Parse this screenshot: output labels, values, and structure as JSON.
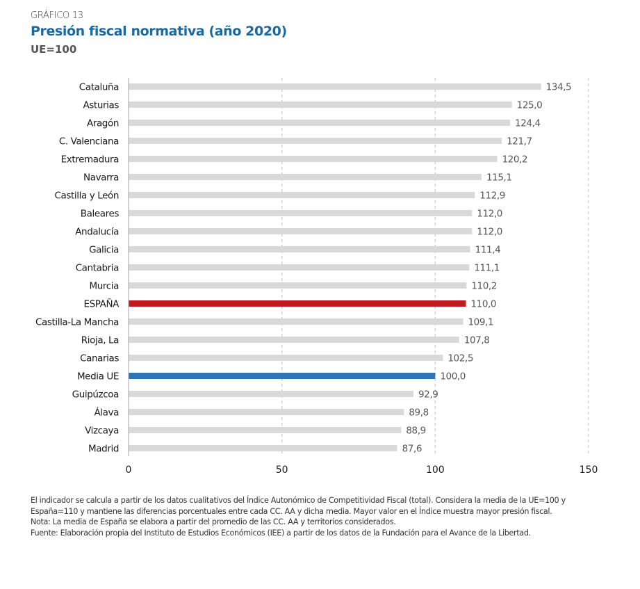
{
  "header": {
    "kicker": "GRÁFICO 13",
    "title": "Presión fiscal normativa (año 2020)",
    "subtitle": "UE=100"
  },
  "colors": {
    "default_bar": "#d9d9d9",
    "spain_bar": "#c0191f",
    "eu_bar": "#2e75b6",
    "title": "#1a6aa0"
  },
  "chart_data": {
    "type": "bar",
    "orientation": "horizontal",
    "title": "Presión fiscal normativa (año 2020)",
    "subtitle": "UE=100",
    "xlabel": "",
    "ylabel": "",
    "xlim": [
      0,
      150
    ],
    "xticks": [
      0,
      50,
      100,
      150
    ],
    "xtick_labels": [
      "0",
      "50",
      "100",
      "150"
    ],
    "grid": "vertical dashed at 50, 100, 150",
    "legend": "none",
    "categories": [
      "Cataluña",
      "Asturias",
      "Aragón",
      "C. Valenciana",
      "Extremadura",
      "Navarra",
      "Castilla y León",
      "Baleares",
      "Andalucía",
      "Galicia",
      "Cantabria",
      "Murcia",
      "ESPAÑA",
      "Castilla-La Mancha",
      "Rioja, La",
      "Canarias",
      "Media UE",
      "Guipúzcoa",
      "Álava",
      "Vizcaya",
      "Madrid"
    ],
    "values": [
      134.5,
      125.0,
      124.4,
      121.7,
      120.2,
      115.1,
      112.9,
      112.0,
      112.0,
      111.4,
      111.1,
      110.2,
      110.0,
      109.1,
      107.8,
      102.5,
      100.0,
      92.9,
      89.8,
      88.9,
      87.6
    ],
    "value_labels": [
      "134,5",
      "125,0",
      "124,4",
      "121,7",
      "120,2",
      "115,1",
      "112,9",
      "112,0",
      "112,0",
      "111,4",
      "111,1",
      "110,2",
      "110,0",
      "109,1",
      "107,8",
      "102,5",
      "100,0",
      "92,9",
      "89,8",
      "88,9",
      "87,6"
    ],
    "highlights": {
      "ESPAÑA": "spain_bar",
      "Media UE": "eu_bar"
    }
  },
  "notes": {
    "line1": "El indicador se calcula a partir de los datos cualitativos del  Índice Autonómico de Competitividad Fiscal (total). Considera la media de la UE=100 y",
    "line2": "España=110 y mantiene las diferencias porcentuales  entre cada CC. AA  y dicha media. Mayor valor en el Índice muestra mayor presión fiscal.",
    "line3": "Nota: La media de España se elabora a partir del promedio de las CC. AA  y territorios considerados.",
    "line4": "Fuente: Elaboración propia del Instituto de Estudios Económicos (IEE) a partir de los datos de la Fundación para el Avance de la Libertad."
  }
}
